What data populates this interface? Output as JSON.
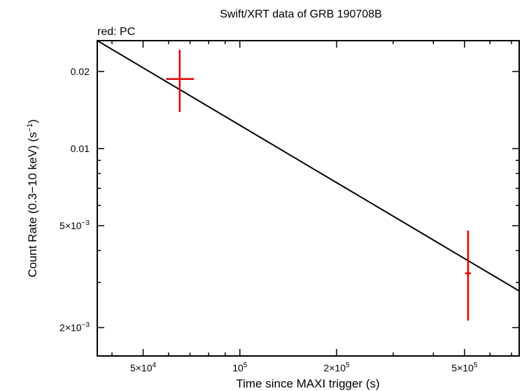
{
  "chart_data": {
    "type": "scatter",
    "title": "Swift/XRT data of GRB 190708B",
    "subtitle": "red: PC",
    "xlabel": "Time since MAXI trigger (s)",
    "ylabel_main": "Count Rate (0.3−10 keV) (s",
    "ylabel_sup": "−1",
    "ylabel_close": ")",
    "x_scale": "log",
    "y_scale": "log",
    "xlim": [
      36000,
      740000
    ],
    "ylim": [
      0.00155,
      0.0264
    ],
    "grid": false,
    "x_ticks": [
      {
        "value": 50000,
        "mant": "5×10",
        "exp": "4"
      },
      {
        "value": 100000,
        "mant": "10",
        "exp": "5"
      },
      {
        "value": 200000,
        "mant": "2×10",
        "exp": "5"
      },
      {
        "value": 500000,
        "mant": "5×10",
        "exp": "5"
      }
    ],
    "y_ticks": [
      {
        "value": 0.002,
        "mant": "2×10",
        "exp": "−3"
      },
      {
        "value": 0.005,
        "mant": "5×10",
        "exp": "−3"
      },
      {
        "value": 0.01,
        "mant": "0.01",
        "exp": ""
      },
      {
        "value": 0.02,
        "mant": "0.02",
        "exp": ""
      }
    ],
    "series": [
      {
        "color": "#e00000",
        "points": [
          {
            "x": 65000,
            "y": 0.0187,
            "xlo": 59000,
            "xhi": 72000,
            "ylo": 0.0139,
            "yhi": 0.0243
          },
          {
            "x": 513000,
            "y": 0.00326,
            "xlo": 502000,
            "xhi": 524000,
            "ylo": 0.00213,
            "yhi": 0.00479
          }
        ]
      }
    ],
    "fit": {
      "color": "#000000",
      "x": [
        36000,
        740000
      ],
      "y": [
        0.0264,
        0.00278
      ]
    }
  }
}
